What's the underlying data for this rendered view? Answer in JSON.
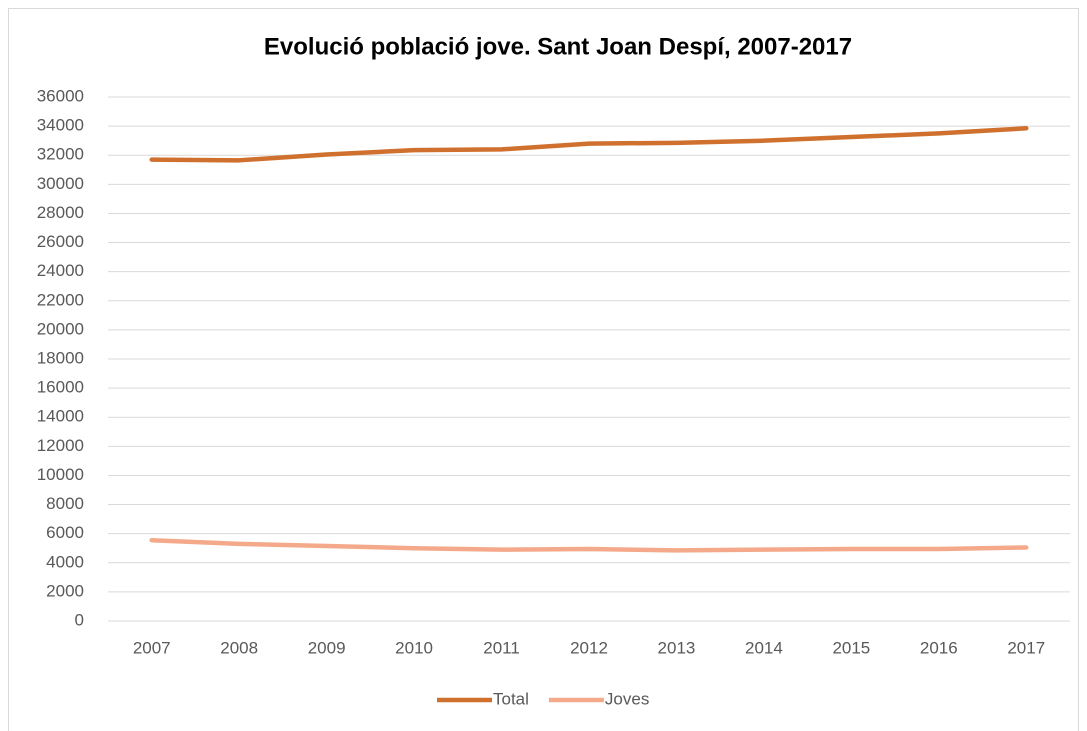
{
  "chart_data": {
    "type": "line",
    "title": "Evolució població jove. Sant Joan Despí, 2007-2017",
    "categories": [
      "2007",
      "2008",
      "2009",
      "2010",
      "2011",
      "2012",
      "2013",
      "2014",
      "2015",
      "2016",
      "2017"
    ],
    "series": [
      {
        "name": "Total",
        "color": "#d0702e",
        "values": [
          31700,
          31650,
          32050,
          32350,
          32400,
          32800,
          32850,
          33000,
          33250,
          33500,
          33850
        ]
      },
      {
        "name": "Joves",
        "color": "#f4aa8a",
        "values": [
          5550,
          5300,
          5150,
          5000,
          4900,
          4950,
          4850,
          4900,
          4950,
          4950,
          5050
        ]
      }
    ],
    "ylim": [
      0,
      36000
    ],
    "yticks": [
      0,
      2000,
      4000,
      6000,
      8000,
      10000,
      12000,
      14000,
      16000,
      18000,
      20000,
      22000,
      24000,
      26000,
      28000,
      30000,
      32000,
      34000,
      36000
    ],
    "grid": true,
    "legend": "bottom"
  }
}
